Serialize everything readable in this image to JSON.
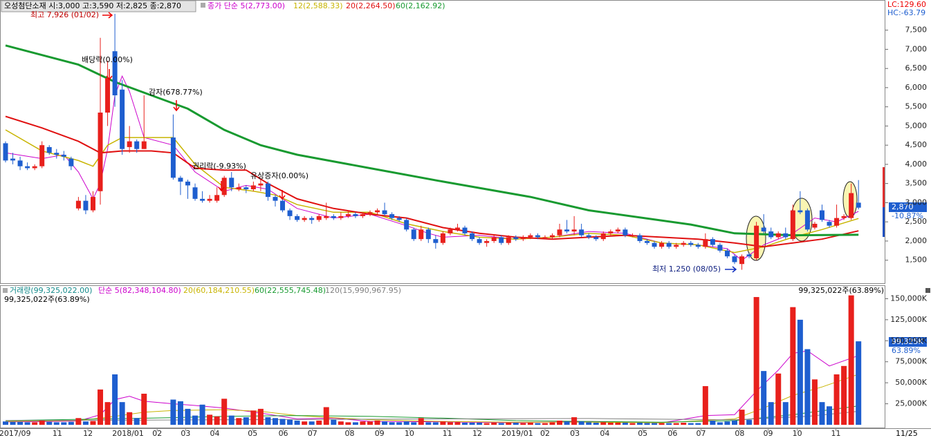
{
  "chart_data": [
    {
      "type": "candlestick",
      "title": "오성첨단소재 시:3,000 고:3,590 저:2,825 종:2,870",
      "open": [
        4550,
        4150,
        4100,
        3950,
        3900,
        3950,
        4450,
        4300,
        4250,
        4150,
        2850,
        3050,
        2800,
        3300,
        5350,
        6950,
        5950,
        4450,
        4600,
        4400,
        null,
        null,
        null,
        4700,
        3650,
        3550,
        3400,
        3100,
        3050,
        3050,
        3200,
        3650,
        3350,
        3400,
        3350,
        3450,
        3500,
        3150,
        3050,
        2800,
        2650,
        2550,
        2600,
        2550,
        2600,
        2650,
        2600,
        2650,
        2700,
        2650,
        2700,
        2750,
        2800,
        2700,
        2600,
        2550,
        2300,
        2050,
        2300,
        2050,
        1950,
        2200,
        2300,
        2350,
        2200,
        2050,
        1950,
        2000,
        2100,
        1950,
        2100,
        2050,
        2100,
        2150,
        2080,
        2100,
        2150,
        2300,
        2250,
        2300,
        2150,
        2100,
        2050,
        2200,
        2250,
        2300,
        2120,
        2150,
        2000,
        1950,
        1850,
        1950,
        1850,
        1900,
        1950,
        1900,
        1850,
        2050,
        1900,
        1750,
        1600,
        1400,
        1650,
        1550,
        2350,
        2250,
        2100,
        2200,
        2050,
        2800,
        2800,
        2350,
        2800,
        2500,
        2400,
        2600,
        2600,
        3000
      ],
      "high": [
        4600,
        4300,
        4200,
        4050,
        4000,
        4600,
        4500,
        4400,
        4350,
        4200,
        3150,
        3200,
        3300,
        7300,
        6700,
        7926,
        6200,
        5000,
        4650,
        5800,
        null,
        null,
        null,
        5300,
        3700,
        3600,
        3500,
        3300,
        3200,
        3400,
        3700,
        3800,
        3500,
        3450,
        3550,
        3600,
        3550,
        3200,
        3100,
        2850,
        2700,
        2650,
        2650,
        2700,
        3000,
        2700,
        2750,
        2800,
        2750,
        2750,
        2800,
        2850,
        3000,
        2750,
        2650,
        2600,
        2350,
        2400,
        2350,
        2150,
        2250,
        2350,
        2450,
        2400,
        2250,
        2100,
        2050,
        2150,
        2150,
        2150,
        2150,
        2150,
        2200,
        2200,
        2150,
        2200,
        2450,
        2550,
        2650,
        2450,
        2200,
        2150,
        2250,
        2300,
        2350,
        2350,
        2200,
        2200,
        2050,
        2000,
        2000,
        2000,
        1950,
        2000,
        2000,
        1950,
        2200,
        2100,
        1950,
        1800,
        1650,
        1650,
        1700,
        2500,
        2700,
        2350,
        2250,
        2350,
        2950,
        3300,
        2850,
        2500,
        2950,
        2550,
        2950,
        2700,
        3500,
        3590
      ],
      "low": [
        4050,
        4000,
        3850,
        3850,
        3850,
        3900,
        4250,
        4150,
        4100,
        3850,
        2800,
        2700,
        2750,
        2950,
        5000,
        5500,
        4250,
        4300,
        4300,
        4400,
        null,
        null,
        null,
        3600,
        3200,
        3100,
        3050,
        3000,
        3000,
        3000,
        3150,
        3300,
        3300,
        3250,
        3300,
        3300,
        3050,
        2900,
        2750,
        2550,
        2500,
        2500,
        2450,
        2500,
        2550,
        2550,
        2550,
        2600,
        2600,
        2600,
        2650,
        2700,
        2650,
        2550,
        2500,
        2250,
        2000,
        2000,
        1950,
        1800,
        1900,
        2150,
        2250,
        2150,
        2000,
        1900,
        1850,
        1950,
        1900,
        1900,
        2000,
        2000,
        2050,
        2050,
        2050,
        2050,
        2100,
        2200,
        2150,
        2100,
        2050,
        2000,
        2000,
        2150,
        2200,
        2100,
        2100,
        1950,
        1900,
        1800,
        1800,
        1800,
        1800,
        1850,
        1850,
        1800,
        1800,
        1850,
        1700,
        1550,
        1400,
        1250,
        1550,
        1500,
        2200,
        2050,
        2050,
        2050,
        2000,
        2700,
        2250,
        2300,
        2500,
        2350,
        2350,
        2550,
        2550,
        2825
      ],
      "close": [
        4100,
        4100,
        3950,
        3900,
        3950,
        4500,
        4300,
        4250,
        4200,
        3950,
        3050,
        2800,
        3150,
        5350,
        6250,
        5800,
        4400,
        4600,
        4400,
        4600,
        null,
        null,
        null,
        3650,
        3550,
        3450,
        3100,
        3050,
        3100,
        3200,
        3650,
        3400,
        3400,
        3350,
        3450,
        3500,
        3150,
        3050,
        2800,
        2650,
        2550,
        2600,
        2550,
        2650,
        2650,
        2600,
        2650,
        2700,
        2650,
        2700,
        2750,
        2800,
        2700,
        2600,
        2550,
        2300,
        2050,
        2300,
        2050,
        1950,
        2200,
        2300,
        2350,
        2200,
        2050,
        1950,
        2000,
        2100,
        1950,
        2100,
        2050,
        2100,
        2150,
        2100,
        2100,
        2150,
        2300,
        2250,
        2300,
        2150,
        2100,
        2050,
        2200,
        2250,
        2300,
        2150,
        2150,
        2000,
        1950,
        1850,
        1950,
        1850,
        1900,
        1950,
        1900,
        1850,
        2050,
        1900,
        1750,
        1600,
        1450,
        1600,
        1600,
        2400,
        2250,
        2100,
        2200,
        2100,
        2800,
        2750,
        2300,
        2450,
        2550,
        2400,
        2600,
        2650,
        3250,
        2870
      ],
      "up_color": "#e8201c",
      "down_color": "#1e5ecf",
      "ylim": [
        900,
        8250
      ],
      "yticks": [
        {
          "value": 1500,
          "label": "1,500"
        },
        {
          "value": 2000,
          "label": "2,000"
        },
        {
          "value": 2500,
          "label": "2,500"
        },
        {
          "value": 3000,
          "label": "3,000"
        },
        {
          "value": 3500,
          "label": "3,500"
        },
        {
          "value": 4000,
          "label": "4,000"
        },
        {
          "value": 4500,
          "label": "4,500"
        },
        {
          "value": 5000,
          "label": "5,000"
        },
        {
          "value": 5500,
          "label": "5,500"
        },
        {
          "value": 6000,
          "label": "6,000"
        },
        {
          "value": 6500,
          "label": "6,500"
        },
        {
          "value": 7000,
          "label": "7,000"
        },
        {
          "value": 7500,
          "label": "7,500"
        }
      ],
      "moving_averages": [
        {
          "name": "종가 단순 5(2,773.00)",
          "color": "#cc00cc",
          "width": 1,
          "x": [
            0,
            5,
            8,
            10,
            12,
            13,
            14,
            15,
            16,
            17,
            19,
            23,
            26,
            30,
            33,
            36,
            40,
            45,
            50,
            55,
            58,
            60,
            65,
            70,
            75,
            80,
            85,
            90,
            95,
            99,
            101,
            104,
            108,
            111,
            114,
            117
          ],
          "values": [
            4300,
            4150,
            4250,
            3800,
            3100,
            3500,
            4400,
            5800,
            6300,
            5900,
            4700,
            4500,
            3800,
            3300,
            3450,
            3350,
            2850,
            2600,
            2700,
            2400,
            2200,
            2100,
            2150,
            2050,
            2100,
            2250,
            2200,
            1950,
            1900,
            1800,
            1500,
            1900,
            2200,
            2600,
            2500,
            2773
          ]
        },
        {
          "name": "12(2,588.33)",
          "color": "#c8b400",
          "width": 1.5,
          "x": [
            0,
            5,
            10,
            12,
            14,
            16,
            19,
            23,
            26,
            30,
            34,
            37,
            40,
            45,
            50,
            55,
            60,
            65,
            70,
            75,
            80,
            85,
            90,
            95,
            100,
            104,
            108,
            112,
            117
          ],
          "values": [
            4900,
            4350,
            4100,
            3950,
            4500,
            4700,
            4700,
            4700,
            4000,
            3400,
            3300,
            3200,
            2950,
            2750,
            2750,
            2450,
            2250,
            2100,
            2050,
            2100,
            2200,
            2150,
            1950,
            1900,
            1700,
            1850,
            2100,
            2300,
            2588
          ]
        },
        {
          "name": "20(2,264.50)",
          "color": "#e01010",
          "width": 2,
          "x": [
            0,
            5,
            10,
            13,
            16,
            20,
            23,
            26,
            30,
            33,
            36,
            40,
            45,
            50,
            55,
            60,
            65,
            70,
            75,
            80,
            85,
            90,
            95,
            100,
            104,
            108,
            112,
            117
          ],
          "values": [
            5250,
            4950,
            4600,
            4300,
            4350,
            4350,
            4300,
            3900,
            3850,
            3850,
            3500,
            3100,
            2850,
            2700,
            2600,
            2350,
            2200,
            2100,
            2050,
            2100,
            2150,
            2100,
            2050,
            1950,
            1850,
            1950,
            2050,
            2265
          ]
        },
        {
          "name": "60(2,162.92)",
          "color": "#189a30",
          "width": 3,
          "x": [
            0,
            10,
            15,
            20,
            25,
            30,
            35,
            40,
            50,
            60,
            72,
            80,
            94,
            100,
            108,
            117
          ],
          "values": [
            7100,
            6600,
            6150,
            5800,
            5450,
            4900,
            4500,
            4250,
            3900,
            3550,
            3150,
            2800,
            2430,
            2200,
            2150,
            2163
          ]
        }
      ],
      "lc_label": "LC:129.60",
      "hc_label": "HC:-63.79",
      "last_price_label": "2,870",
      "change_label": "-10.87%",
      "annotations": [
        "최고 7,926 (01/02)",
        "배당락(0.00%)",
        "감자(678.77%)",
        "권리락(-9.93%)",
        "유상증자(0.00%)",
        "최저 1,250 (08/05)"
      ]
    },
    {
      "type": "bar",
      "title": "거래량(99,325,022.00)",
      "values": [
        4000,
        3500,
        3500,
        3000,
        3000,
        5000,
        3500,
        3000,
        3000,
        3500,
        8000,
        4000,
        4500,
        42000,
        27000,
        60000,
        27000,
        15000,
        8000,
        37000,
        null,
        null,
        null,
        30000,
        28000,
        19000,
        11000,
        24000,
        12000,
        10000,
        31000,
        11000,
        8000,
        9000,
        17000,
        19000,
        9000,
        8000,
        7000,
        6000,
        5000,
        4000,
        4000,
        5000,
        21000,
        6000,
        4000,
        3000,
        3000,
        4000,
        4000,
        5000,
        4000,
        3000,
        3000,
        4000,
        3000,
        8000,
        3000,
        3000,
        4000,
        3000,
        3000,
        2500,
        2500,
        2500,
        2000,
        2500,
        2000,
        2500,
        2500,
        2000,
        2500,
        2000,
        2000,
        3000,
        5000,
        4000,
        9000,
        4000,
        3000,
        2500,
        3000,
        2500,
        2500,
        2500,
        2000,
        2500,
        2000,
        2000,
        2000,
        2000,
        2000,
        2500,
        2000,
        2000,
        46000,
        5000,
        3000,
        4000,
        5000,
        18000,
        6000,
        152000,
        64000,
        27000,
        61000,
        27000,
        140000,
        125000,
        90000,
        54000,
        27000,
        22000,
        60000,
        70000,
        154000,
        99325
      ],
      "ylim": [
        0,
        166000
      ],
      "yticks": [
        {
          "value": 25000,
          "label": "25,000K"
        },
        {
          "value": 50000,
          "label": "50,000K"
        },
        {
          "value": 75000,
          "label": "75,000K"
        },
        {
          "value": 100000,
          "label": "100,000K"
        },
        {
          "value": 125000,
          "label": "125,000K"
        },
        {
          "value": 150000,
          "label": "150,000K"
        }
      ],
      "moving_averages": [
        {
          "name": "단순 5(82,348,104.80)",
          "color": "#cc00cc",
          "width": 1,
          "x": [
            0,
            5,
            10,
            13,
            15,
            17,
            19,
            23,
            26,
            30,
            35,
            40,
            45,
            50,
            60,
            70,
            80,
            90,
            96,
            100,
            103,
            106,
            108,
            110,
            113,
            117
          ],
          "values": [
            3500,
            3800,
            4500,
            12000,
            30000,
            34000,
            28000,
            25000,
            23000,
            20000,
            14000,
            7000,
            8000,
            4000,
            3500,
            2500,
            4000,
            2200,
            11000,
            12000,
            40000,
            65000,
            85000,
            88000,
            70000,
            82348
          ]
        },
        {
          "name": "20(60,184,210.55)",
          "color": "#c8b400",
          "width": 1,
          "x": [
            0,
            10,
            15,
            19,
            23,
            30,
            35,
            40,
            50,
            60,
            70,
            80,
            90,
            100,
            104,
            108,
            112,
            117
          ],
          "values": [
            4000,
            5000,
            10000,
            15000,
            17000,
            18000,
            16000,
            11000,
            6000,
            4000,
            3000,
            3000,
            2500,
            7000,
            20000,
            35000,
            45000,
            60184
          ]
        },
        {
          "name": "60(22,555,745.48)",
          "color": "#189a30",
          "width": 1,
          "x": [
            0,
            20,
            30,
            40,
            50,
            60,
            70,
            80,
            90,
            100,
            108,
            117
          ],
          "values": [
            5000,
            8000,
            10000,
            11000,
            10000,
            8000,
            5000,
            4000,
            3000,
            5000,
            12000,
            22556
          ]
        },
        {
          "name": "120(15,990,967.95)",
          "color": "#808080",
          "width": 1,
          "x": [
            0,
            60,
            80,
            100,
            110,
            117
          ],
          "values": [
            5000,
            7000,
            7500,
            6000,
            10000,
            15991
          ]
        }
      ],
      "info_label": "99,325,022주(63.89%)",
      "last_value_label": "99,325K",
      "ratio_label": "63.89%",
      "xticks": [
        {
          "value": 1.3,
          "label": "2017/09"
        },
        {
          "value": 7.1,
          "label": "11"
        },
        {
          "value": 11.3,
          "label": "12"
        },
        {
          "value": 16.8,
          "label": "2018/01"
        },
        {
          "value": 20.8,
          "label": "02"
        },
        {
          "value": 24.7,
          "label": "03"
        },
        {
          "value": 28.7,
          "label": "04"
        },
        {
          "value": 33.9,
          "label": "05"
        },
        {
          "value": 38.1,
          "label": "06"
        },
        {
          "value": 42.1,
          "label": "07"
        },
        {
          "value": 47.2,
          "label": "08"
        },
        {
          "value": 51.3,
          "label": "09"
        },
        {
          "value": 55.4,
          "label": "10"
        },
        {
          "value": 60.6,
          "label": "11"
        },
        {
          "value": 64.7,
          "label": "12"
        },
        {
          "value": 70.2,
          "label": "2019/01"
        },
        {
          "value": 74,
          "label": "02"
        },
        {
          "value": 78.1,
          "label": "03"
        },
        {
          "value": 82.2,
          "label": "04"
        },
        {
          "value": 87.4,
          "label": "05"
        },
        {
          "value": 91.5,
          "label": "06"
        },
        {
          "value": 95.4,
          "label": "07"
        },
        {
          "value": 100.7,
          "label": "08"
        },
        {
          "value": 104.6,
          "label": "09"
        },
        {
          "value": 108.6,
          "label": "10"
        },
        {
          "value": 113.9,
          "label": "11"
        }
      ],
      "date_label": "11/25"
    }
  ]
}
